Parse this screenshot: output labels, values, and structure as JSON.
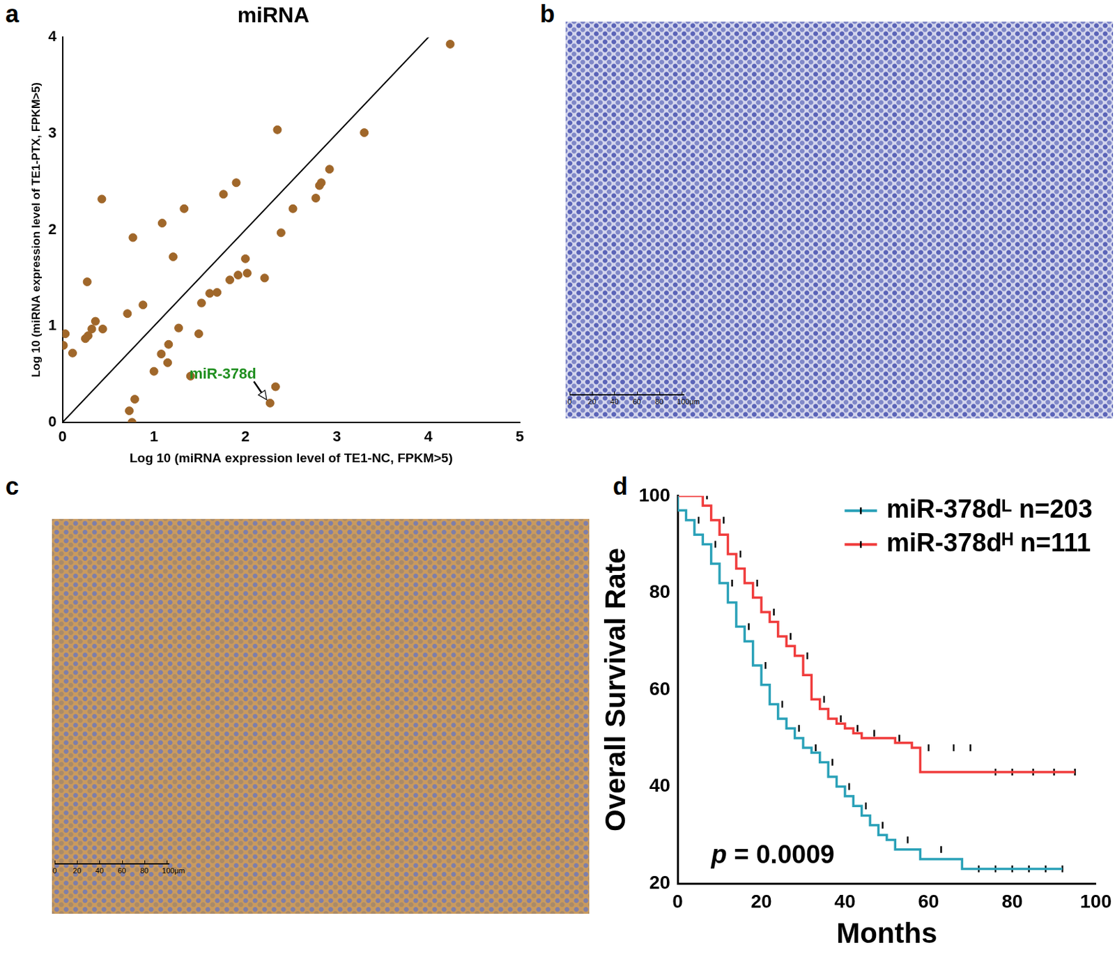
{
  "chart_data": [
    {
      "type": "scatter",
      "panel": "a",
      "title": "miRNA",
      "x_label": "Log 10 (miRNA expression level of TE1-NC, FPKM>5)",
      "y_label": "Log 10 (miRNA expression level of TE1-PTX, FPKM>5)",
      "color": "#a0672a",
      "marker": "circle",
      "grid": false,
      "xlim": [
        0,
        5
      ],
      "xticks": [
        0,
        1,
        2,
        3,
        4,
        5
      ],
      "ylim": [
        0,
        4
      ],
      "yticks": [
        0,
        1,
        2,
        3,
        4
      ],
      "x": [
        0.01,
        0.03,
        0.11,
        0.25,
        0.27,
        0.28,
        0.32,
        0.36,
        0.43,
        0.44,
        0.71,
        0.73,
        0.76,
        0.77,
        0.79,
        0.88,
        1.0,
        1.08,
        1.09,
        1.15,
        1.16,
        1.21,
        1.27,
        1.33,
        1.4,
        1.49,
        1.52,
        1.61,
        1.69,
        1.76,
        1.83,
        1.9,
        1.92,
        2.0,
        2.02,
        2.21,
        2.27,
        2.33,
        2.35,
        2.39,
        2.52,
        2.77,
        2.81,
        2.83,
        2.92,
        3.3,
        4.24
      ],
      "values": [
        0.8,
        0.92,
        0.72,
        0.87,
        1.46,
        0.9,
        0.97,
        1.05,
        2.32,
        0.97,
        1.13,
        0.12,
        0.0,
        1.92,
        0.24,
        1.22,
        0.53,
        0.71,
        2.07,
        0.62,
        0.81,
        1.72,
        0.98,
        2.22,
        0.48,
        0.92,
        1.24,
        1.34,
        1.35,
        2.37,
        1.48,
        2.49,
        1.53,
        1.7,
        1.55,
        1.5,
        0.2,
        0.37,
        3.04,
        1.97,
        2.22,
        2.33,
        2.46,
        2.49,
        2.63,
        3.01,
        3.93
      ],
      "reference_line": {
        "x": [
          0,
          4.1
        ],
        "values": [
          0,
          4.1
        ]
      },
      "annotation": {
        "text": "miR-378d",
        "x": 2.27,
        "y": 0.2,
        "color": "#1f8f1f"
      }
    },
    {
      "type": "line",
      "panel": "d",
      "line_style": "step",
      "legend": "upper right",
      "x_label": "Months",
      "y_label": "Overall Survival Rate",
      "grid": false,
      "xlim": [
        0,
        100
      ],
      "xticks": [
        0,
        20,
        40,
        60,
        80,
        100
      ],
      "ylim": [
        20,
        100
      ],
      "yticks": [
        20,
        40,
        60,
        80,
        100
      ],
      "annotation": "p = 0.0009",
      "series": [
        {
          "name": "miR-378dᴸ n=203",
          "color": "#2aa1b8",
          "x": [
            0,
            2,
            4,
            6,
            8,
            10,
            12,
            14,
            16,
            18,
            20,
            22,
            24,
            26,
            28,
            30,
            32,
            34,
            36,
            38,
            40,
            42,
            44,
            46,
            48,
            50,
            52,
            58,
            68,
            70,
            92
          ],
          "values": [
            100,
            97,
            95,
            92,
            90,
            86,
            82,
            78,
            73,
            70,
            65,
            61,
            57,
            54,
            52,
            50,
            48,
            47,
            45,
            42,
            40,
            38,
            36,
            34,
            32,
            30,
            29,
            27,
            25,
            23,
            23
          ],
          "censored": [
            5,
            9,
            13,
            17,
            21,
            25,
            29,
            33,
            37,
            41,
            45,
            49,
            55,
            63,
            72,
            76,
            80,
            84,
            88,
            92
          ]
        },
        {
          "name": "miR-378dᴴ n=111",
          "color": "#f03c3c",
          "x": [
            0,
            6,
            8,
            10,
            12,
            14,
            16,
            18,
            20,
            22,
            24,
            26,
            28,
            30,
            32,
            34,
            36,
            38,
            40,
            42,
            44,
            52,
            56,
            58,
            72,
            95
          ],
          "values": [
            100,
            100,
            98,
            95,
            92,
            88,
            85,
            82,
            79,
            76,
            74,
            71,
            69,
            67,
            63,
            58,
            56,
            54,
            53,
            52,
            51,
            50,
            49,
            48,
            43,
            43
          ],
          "censored": [
            7,
            11,
            15,
            19,
            23,
            27,
            31,
            35,
            39,
            43,
            47,
            53,
            60,
            66,
            70,
            76,
            80,
            85,
            90,
            95
          ]
        }
      ]
    }
  ],
  "images": [
    {
      "panel": "b",
      "scale_bar": [
        "0",
        "20",
        "40",
        "60",
        "80",
        "100μm"
      ]
    },
    {
      "panel": "c",
      "scale_bar": [
        "0",
        "20",
        "40",
        "60",
        "80",
        "100μm"
      ]
    }
  ]
}
